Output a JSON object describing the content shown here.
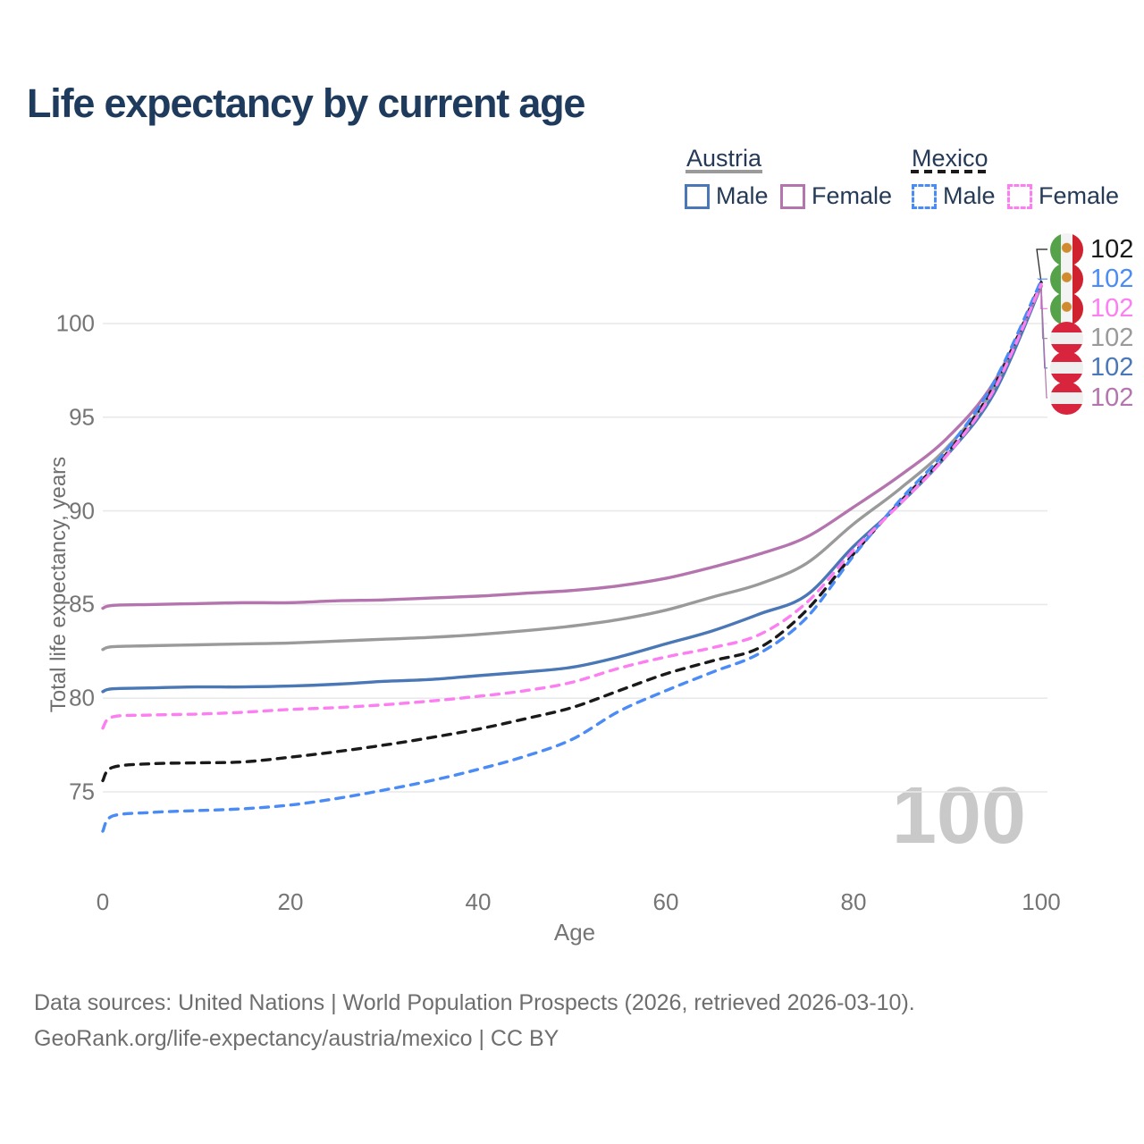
{
  "title": "Life expectancy by current age",
  "legend": {
    "groups": [
      {
        "label": "Austria",
        "line_style": "solid",
        "rule_color": "#9a9a9a",
        "items": [
          {
            "label": "Male",
            "color": "#4a77b5"
          },
          {
            "label": "Female",
            "color": "#b474ae"
          }
        ]
      },
      {
        "label": "Mexico",
        "line_style": "dashed",
        "rule_color": "#1a1a1a",
        "items": [
          {
            "label": "Male",
            "color": "#4b8bf5"
          },
          {
            "label": "Female",
            "color": "#fc7ff2"
          }
        ]
      }
    ]
  },
  "watermark": "100",
  "footer": {
    "line1": "Data sources: United Nations | World Population Prospects (2026, retrieved 2026-03-10).",
    "line2": "GeoRank.org/life-expectancy/austria/mexico | CC BY"
  },
  "chart_data": {
    "type": "line",
    "title": "Life expectancy by current age",
    "xlabel": "Age",
    "ylabel": "Total life expectancy, years",
    "xlim": [
      0,
      100
    ],
    "ylim": [
      72.5,
      103
    ],
    "xticks": [
      0,
      20,
      40,
      60,
      80,
      100
    ],
    "yticks": [
      75,
      80,
      85,
      90,
      95,
      100
    ],
    "grid": "horizontal",
    "legend_position": "top-right",
    "series": [
      {
        "name": "Mexico",
        "country": "mexico",
        "sex": "total",
        "color": "#1a1a1a",
        "dash": "dashed",
        "end_label": "102",
        "points": [
          [
            0,
            75.6
          ],
          [
            1,
            76.3
          ],
          [
            5,
            76.5
          ],
          [
            10,
            76.55
          ],
          [
            15,
            76.6
          ],
          [
            20,
            76.85
          ],
          [
            25,
            77.15
          ],
          [
            30,
            77.5
          ],
          [
            35,
            77.9
          ],
          [
            40,
            78.35
          ],
          [
            45,
            78.9
          ],
          [
            50,
            79.5
          ],
          [
            55,
            80.4
          ],
          [
            60,
            81.3
          ],
          [
            65,
            82.0
          ],
          [
            70,
            82.7
          ],
          [
            75,
            84.7
          ],
          [
            80,
            87.7
          ],
          [
            85,
            90.5
          ],
          [
            90,
            93.1
          ],
          [
            95,
            96.7
          ],
          [
            100,
            102.2
          ]
        ]
      },
      {
        "name": "Mexico Male",
        "country": "mexico",
        "sex": "male",
        "color": "#4b8bf5",
        "dash": "dashed",
        "end_label": "102",
        "points": [
          [
            0,
            72.9
          ],
          [
            1,
            73.7
          ],
          [
            5,
            73.9
          ],
          [
            10,
            74.0
          ],
          [
            15,
            74.1
          ],
          [
            20,
            74.3
          ],
          [
            25,
            74.65
          ],
          [
            30,
            75.1
          ],
          [
            35,
            75.6
          ],
          [
            40,
            76.2
          ],
          [
            45,
            76.9
          ],
          [
            50,
            77.8
          ],
          [
            55,
            79.3
          ],
          [
            60,
            80.4
          ],
          [
            65,
            81.4
          ],
          [
            70,
            82.4
          ],
          [
            75,
            84.3
          ],
          [
            80,
            87.6
          ],
          [
            85,
            90.6
          ],
          [
            90,
            93.3
          ],
          [
            95,
            96.9
          ],
          [
            100,
            102.3
          ]
        ]
      },
      {
        "name": "Mexico Female",
        "country": "mexico",
        "sex": "female",
        "color": "#fc7ff2",
        "dash": "dashed",
        "end_label": "102",
        "points": [
          [
            0,
            78.4
          ],
          [
            1,
            79.0
          ],
          [
            5,
            79.1
          ],
          [
            10,
            79.15
          ],
          [
            15,
            79.25
          ],
          [
            20,
            79.4
          ],
          [
            25,
            79.5
          ],
          [
            30,
            79.65
          ],
          [
            35,
            79.85
          ],
          [
            40,
            80.1
          ],
          [
            45,
            80.4
          ],
          [
            50,
            80.85
          ],
          [
            55,
            81.6
          ],
          [
            60,
            82.2
          ],
          [
            65,
            82.7
          ],
          [
            70,
            83.4
          ],
          [
            75,
            85.1
          ],
          [
            80,
            87.9
          ],
          [
            85,
            90.4
          ],
          [
            90,
            93.0
          ],
          [
            95,
            96.5
          ],
          [
            100,
            102.1
          ]
        ]
      },
      {
        "name": "Austria",
        "country": "austria",
        "sex": "total",
        "color": "#9a9a9a",
        "dash": "solid",
        "end_label": "102",
        "points": [
          [
            0,
            82.6
          ],
          [
            1,
            82.75
          ],
          [
            5,
            82.8
          ],
          [
            10,
            82.85
          ],
          [
            15,
            82.9
          ],
          [
            20,
            82.95
          ],
          [
            25,
            83.05
          ],
          [
            30,
            83.15
          ],
          [
            35,
            83.25
          ],
          [
            40,
            83.4
          ],
          [
            45,
            83.6
          ],
          [
            50,
            83.85
          ],
          [
            55,
            84.2
          ],
          [
            60,
            84.7
          ],
          [
            65,
            85.4
          ],
          [
            70,
            86.1
          ],
          [
            75,
            87.2
          ],
          [
            80,
            89.3
          ],
          [
            85,
            91.2
          ],
          [
            90,
            93.4
          ],
          [
            95,
            96.6
          ],
          [
            100,
            102.0
          ]
        ]
      },
      {
        "name": "Austria Male",
        "country": "austria",
        "sex": "male",
        "color": "#4a77b5",
        "dash": "solid",
        "end_label": "102",
        "points": [
          [
            0,
            80.35
          ],
          [
            1,
            80.5
          ],
          [
            5,
            80.55
          ],
          [
            10,
            80.6
          ],
          [
            15,
            80.6
          ],
          [
            20,
            80.65
          ],
          [
            25,
            80.75
          ],
          [
            30,
            80.9
          ],
          [
            35,
            81.0
          ],
          [
            40,
            81.2
          ],
          [
            45,
            81.4
          ],
          [
            50,
            81.65
          ],
          [
            55,
            82.2
          ],
          [
            60,
            82.9
          ],
          [
            65,
            83.6
          ],
          [
            70,
            84.5
          ],
          [
            75,
            85.5
          ],
          [
            80,
            88.1
          ],
          [
            85,
            90.4
          ],
          [
            90,
            93.0
          ],
          [
            95,
            96.3
          ],
          [
            100,
            102.0
          ]
        ]
      },
      {
        "name": "Austria Female",
        "country": "austria",
        "sex": "female",
        "color": "#b474ae",
        "dash": "solid",
        "end_label": "102",
        "points": [
          [
            0,
            84.8
          ],
          [
            1,
            84.95
          ],
          [
            5,
            85.0
          ],
          [
            10,
            85.05
          ],
          [
            15,
            85.1
          ],
          [
            20,
            85.1
          ],
          [
            25,
            85.2
          ],
          [
            30,
            85.25
          ],
          [
            35,
            85.35
          ],
          [
            40,
            85.45
          ],
          [
            45,
            85.6
          ],
          [
            50,
            85.75
          ],
          [
            55,
            86.0
          ],
          [
            60,
            86.4
          ],
          [
            65,
            87.0
          ],
          [
            70,
            87.7
          ],
          [
            75,
            88.6
          ],
          [
            80,
            90.2
          ],
          [
            85,
            91.9
          ],
          [
            90,
            93.9
          ],
          [
            95,
            96.9
          ],
          [
            100,
            102.0
          ]
        ]
      }
    ]
  }
}
